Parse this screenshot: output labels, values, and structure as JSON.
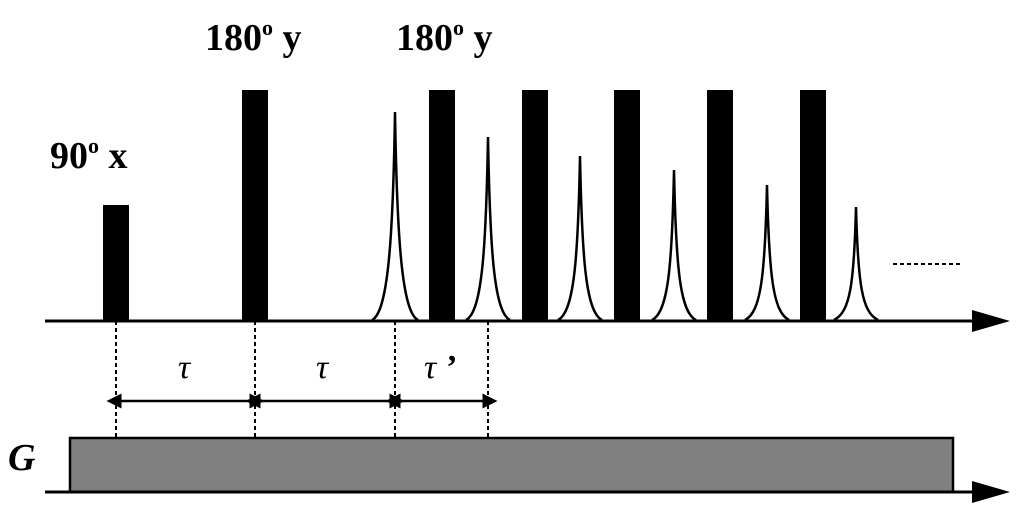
{
  "pulses": {
    "p90": {
      "angle": "90",
      "deg": "o",
      "phase": "x"
    },
    "p180_first": {
      "angle": "180",
      "deg": "o",
      "phase": "y"
    },
    "p180_train": {
      "angle": "180",
      "deg": "o",
      "phase": "y"
    }
  },
  "intervals": {
    "tau1": "τ",
    "tau2": "τ",
    "tau3": "τ",
    "tau3_prime": "’"
  },
  "gradient": {
    "label": "G"
  },
  "colors": {
    "ink": "#000000",
    "gradient_fill": "#808080",
    "background": "#ffffff"
  },
  "echo_train": {
    "echo_count": 6,
    "refocusing_pulses": 5,
    "continues": true
  }
}
